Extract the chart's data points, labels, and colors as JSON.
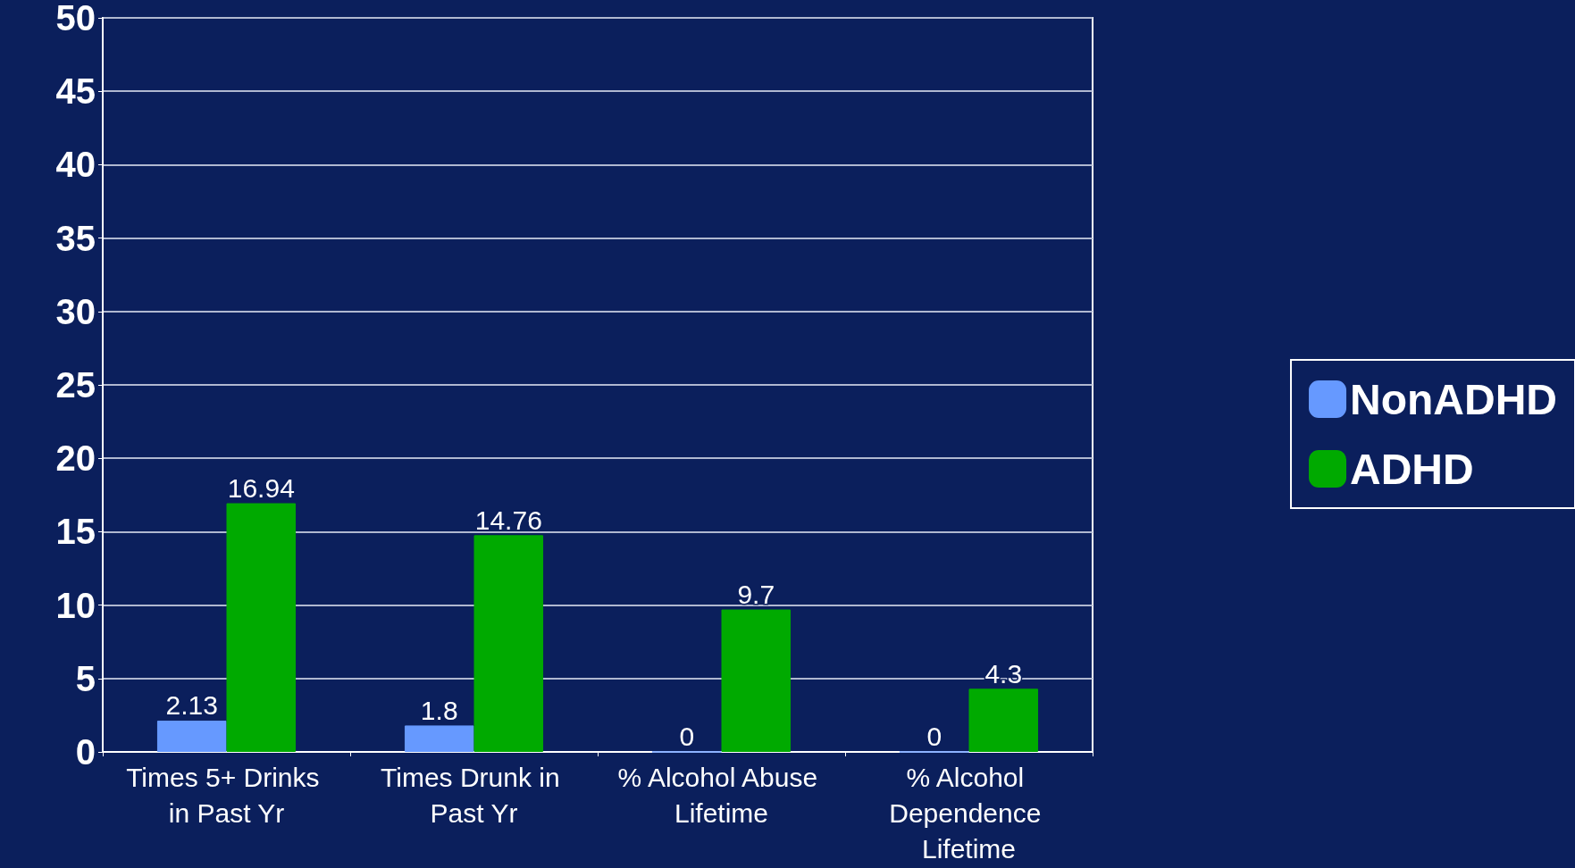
{
  "chart_data": {
    "type": "bar",
    "categories": [
      "Times 5+ Drinks in Past Yr",
      "Times Drunk in Past Yr",
      "% Alcohol Abuse Lifetime",
      "% Alcohol Dependence Lifetime"
    ],
    "series": [
      {
        "name": "NonADHD",
        "color": "#6699ff",
        "values": [
          2.13,
          1.8,
          0,
          0
        ]
      },
      {
        "name": "ADHD",
        "color": "#00aa00",
        "values": [
          16.94,
          14.76,
          9.7,
          4.3
        ]
      }
    ],
    "ylim": [
      0,
      50
    ],
    "yticks": [
      0,
      5,
      10,
      15,
      20,
      25,
      30,
      35,
      40,
      45,
      50
    ],
    "grid": "y",
    "legend": "right",
    "data_labels": true
  }
}
